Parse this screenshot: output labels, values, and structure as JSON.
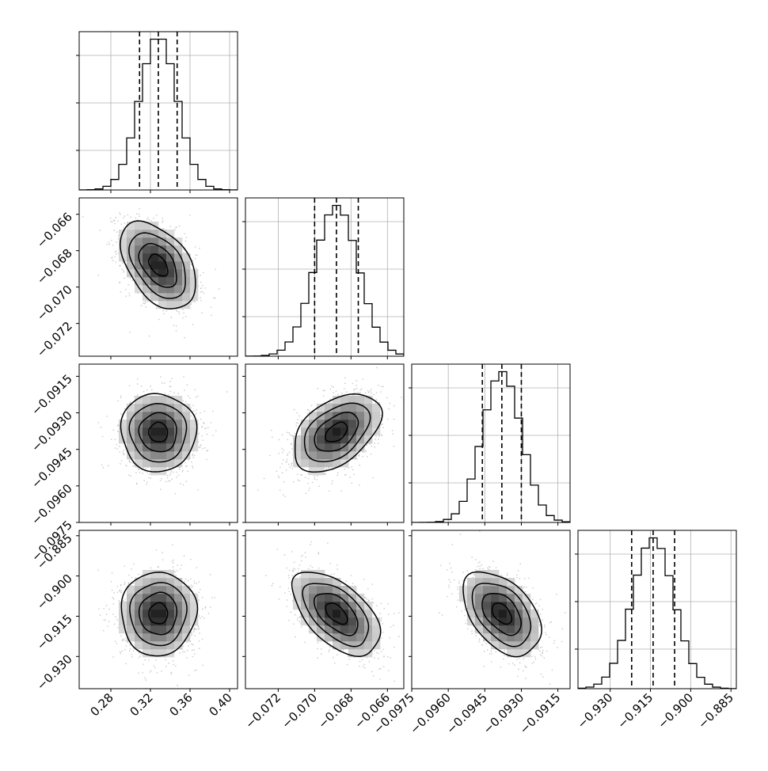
{
  "chart_data": {
    "type": "corner",
    "grid": true,
    "parameters": [
      {
        "range": [
          0.248,
          0.408
        ],
        "mean": 0.328,
        "sd": 0.019,
        "q16": 0.309,
        "q50": 0.328,
        "q84": 0.347,
        "ticks": [
          {
            "v": 0.28,
            "label": "0.28"
          },
          {
            "v": 0.32,
            "label": "0.32"
          },
          {
            "v": 0.36,
            "label": "0.36"
          },
          {
            "v": 0.4,
            "label": "0.40"
          }
        ]
      },
      {
        "range": [
          -0.0738,
          -0.0651
        ],
        "mean": -0.0688,
        "sd": 0.0012,
        "q16": -0.07,
        "q50": -0.0688,
        "q84": -0.0676,
        "ticks": [
          {
            "v": -0.072,
            "label": "−0.072"
          },
          {
            "v": -0.07,
            "label": "−0.070"
          },
          {
            "v": -0.068,
            "label": "−0.068"
          },
          {
            "v": -0.066,
            "label": "−0.066"
          }
        ]
      },
      {
        "range": [
          -0.0975,
          -0.091
        ],
        "mean": -0.0938,
        "sd": 0.0008,
        "q16": -0.0946,
        "q50": -0.0938,
        "q84": -0.093,
        "ticks": [
          {
            "v": -0.0975,
            "label": "−0.0975"
          },
          {
            "v": -0.096,
            "label": "−0.0960"
          },
          {
            "v": -0.0945,
            "label": "−0.0945"
          },
          {
            "v": -0.093,
            "label": "−0.0930"
          },
          {
            "v": -0.0915,
            "label": "−0.0915"
          }
        ]
      },
      {
        "range": [
          -0.942,
          -0.883
        ],
        "mean": -0.914,
        "sd": 0.0078,
        "q16": -0.922,
        "q50": -0.914,
        "q84": -0.906,
        "ticks": [
          {
            "v": -0.93,
            "label": "−0.930"
          },
          {
            "v": -0.915,
            "label": "−0.915"
          },
          {
            "v": -0.9,
            "label": "−0.900"
          },
          {
            "v": -0.885,
            "label": "−0.885"
          }
        ]
      }
    ],
    "correlations": [
      {
        "i": 1,
        "j": 0,
        "rho": -0.45
      },
      {
        "i": 2,
        "j": 0,
        "rho": -0.02
      },
      {
        "i": 2,
        "j": 1,
        "rho": 0.45
      },
      {
        "i": 3,
        "j": 0,
        "rho": 0.02
      },
      {
        "i": 3,
        "j": 1,
        "rho": -0.55
      },
      {
        "i": 3,
        "j": 2,
        "rho": -0.45
      }
    ],
    "contour_levels_sigma": [
      0.5,
      1.0,
      1.5,
      2.0
    ],
    "quantile_style": "dashed"
  }
}
